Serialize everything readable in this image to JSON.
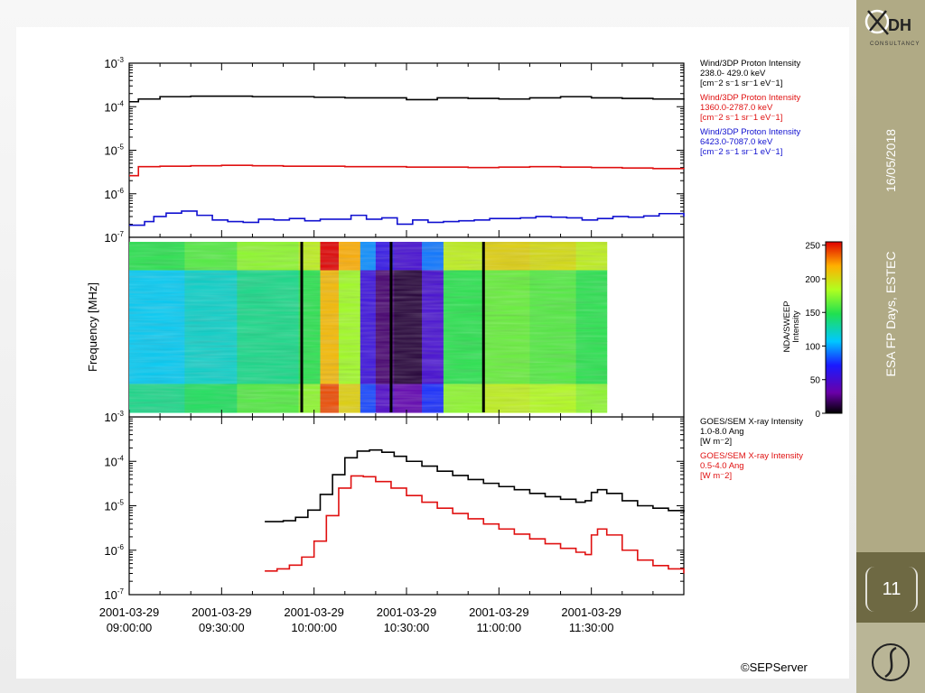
{
  "sidebar": {
    "date": "16/05/2018",
    "event": "ESA FP Days, ESTEC",
    "page_number": "11",
    "logo_text": "DH",
    "logo_subtext": "CONSULTANCY"
  },
  "credit": "©SEPServer",
  "chart_data": [
    {
      "type": "line",
      "panel": "top",
      "yscale": "log",
      "ylim": [
        1e-07,
        0.001
      ],
      "ytick_labels": [
        "10-3",
        "10-4",
        "10-5",
        "10-6",
        "10-7"
      ],
      "x_unit": "minutes after 2001-03-29 09:00:00",
      "xlim": [
        0,
        180
      ],
      "series": [
        {
          "name": "Wind/3DP Proton Intensity",
          "energy": " 238.0- 429.0 keV",
          "units": "[cm-2 s-1 sr-1 eV-1]",
          "color": "#000000",
          "x": [
            0,
            3,
            10,
            20,
            30,
            40,
            50,
            60,
            70,
            80,
            90,
            100,
            110,
            120,
            130,
            140,
            150,
            160,
            170,
            180
          ],
          "y": [
            0.00013,
            0.00015,
            0.00017,
            0.000175,
            0.000175,
            0.00017,
            0.00017,
            0.000165,
            0.00016,
            0.00016,
            0.000145,
            0.00016,
            0.000155,
            0.00015,
            0.00016,
            0.00017,
            0.00016,
            0.000155,
            0.00015,
            0.000145
          ]
        },
        {
          "name": "Wind/3DP Proton Intensity",
          "energy": "1360.0-2787.0 keV",
          "units": "[cm-2 s-1 sr-1 eV-1]",
          "color": "#e01010",
          "x": [
            0,
            2,
            3,
            10,
            20,
            30,
            40,
            50,
            60,
            70,
            80,
            90,
            100,
            110,
            120,
            130,
            140,
            150,
            160,
            170,
            180
          ],
          "y": [
            2.6e-06,
            2.6e-06,
            4.2e-06,
            4.3e-06,
            4.4e-06,
            4.5e-06,
            4.4e-06,
            4.3e-06,
            4.3e-06,
            4.2e-06,
            4.2e-06,
            4.1e-06,
            4.1e-06,
            4e-06,
            4.1e-06,
            4.2e-06,
            4.1e-06,
            4e-06,
            3.9e-06,
            3.8e-06,
            3.7e-06
          ]
        },
        {
          "name": "Wind/3DP Proton Intensity",
          "energy": "6423.0-7087.0 keV",
          "units": "[cm-2 s-1 sr-1 eV-1]",
          "color": "#1010d0",
          "x": [
            0,
            5,
            8,
            12,
            17,
            22,
            27,
            32,
            37,
            42,
            47,
            52,
            57,
            62,
            67,
            72,
            77,
            82,
            87,
            92,
            97,
            102,
            107,
            112,
            117,
            122,
            127,
            132,
            137,
            142,
            147,
            152,
            157,
            162,
            167,
            172,
            180
          ],
          "y": [
            1.9e-07,
            2.3e-07,
            3e-07,
            3.6e-07,
            4e-07,
            3.2e-07,
            2.5e-07,
            2.3e-07,
            2.2e-07,
            2.6e-07,
            2.5e-07,
            2.7e-07,
            2.4e-07,
            2.6e-07,
            2.6e-07,
            3.2e-07,
            2.6e-07,
            2.8e-07,
            2e-07,
            2.5e-07,
            2.2e-07,
            2.3e-07,
            2.4e-07,
            2.5e-07,
            2.7e-07,
            2.7e-07,
            2.8e-07,
            3e-07,
            2.9e-07,
            2.8e-07,
            2.5e-07,
            2.7e-07,
            3e-07,
            2.9e-07,
            3.1e-07,
            3.5e-07,
            3e-07
          ]
        }
      ]
    },
    {
      "type": "heatmap",
      "panel": "middle",
      "ylabel": "Frequency [MHz]",
      "colorbar_label": "NDA/SWEEP Intensity",
      "colorbar_ticks": [
        0,
        50,
        100,
        150,
        200,
        250
      ],
      "colorbar_range": [
        0,
        255
      ],
      "x_unit": "minutes after 2001-03-29 09:00:00",
      "data_xlim": [
        0,
        155
      ],
      "columns": [
        {
          "x0": 0,
          "x1": 18,
          "v": 110
        },
        {
          "x0": 18,
          "x1": 35,
          "v": 120
        },
        {
          "x0": 35,
          "x1": 55,
          "v": 135
        },
        {
          "x0": 55,
          "x1": 62,
          "v": 150
        },
        {
          "x0": 62,
          "x1": 68,
          "v": 215
        },
        {
          "x0": 68,
          "x1": 75,
          "v": 180
        },
        {
          "x0": 75,
          "x1": 80,
          "v": 55
        },
        {
          "x0": 80,
          "x1": 86,
          "v": 20
        },
        {
          "x0": 86,
          "x1": 95,
          "v": 10
        },
        {
          "x0": 95,
          "x1": 102,
          "v": 50
        },
        {
          "x0": 102,
          "x1": 115,
          "v": 150
        },
        {
          "x0": 115,
          "x1": 130,
          "v": 165
        },
        {
          "x0": 130,
          "x1": 145,
          "v": 160
        },
        {
          "x0": 145,
          "x1": 155,
          "v": 150
        }
      ],
      "dark_lines_x": [
        56,
        85,
        115
      ]
    },
    {
      "type": "line",
      "panel": "bottom",
      "yscale": "log",
      "ylim": [
        1e-07,
        0.001
      ],
      "ytick_labels": [
        "10-3",
        "10-4",
        "10-5",
        "10-6",
        "10-7"
      ],
      "x_unit": "minutes after 2001-03-29 09:00:00",
      "xlim": [
        0,
        180
      ],
      "xtick_labels": [
        [
          "2001-03-29",
          "09:00:00"
        ],
        [
          "2001-03-29",
          "09:30:00"
        ],
        [
          "2001-03-29",
          "10:00:00"
        ],
        [
          "2001-03-29",
          "10:30:00"
        ],
        [
          "2001-03-29",
          "11:00:00"
        ],
        [
          "2001-03-29",
          "11:30:00"
        ]
      ],
      "xtick_values": [
        0,
        30,
        60,
        90,
        120,
        150
      ],
      "series": [
        {
          "name": "GOES/SEM X-ray Intensity",
          "energy": "1.0-8.0 Ang",
          "units": "[W m-2]",
          "color": "#000000",
          "x": [
            44,
            50,
            54,
            58,
            62,
            66,
            70,
            74,
            78,
            82,
            86,
            90,
            95,
            100,
            105,
            110,
            115,
            120,
            125,
            130,
            135,
            140,
            145,
            148,
            150,
            152,
            155,
            160,
            165,
            170,
            175,
            180
          ],
          "y": [
            4.4e-06,
            4.6e-06,
            5.5e-06,
            8e-06,
            1.8e-05,
            5e-05,
            0.00012,
            0.00017,
            0.00018,
            0.00016,
            0.00013,
            0.0001,
            7.8e-05,
            6e-05,
            4.8e-05,
            3.9e-05,
            3.2e-05,
            2.7e-05,
            2.3e-05,
            1.9e-05,
            1.6e-05,
            1.4e-05,
            1.2e-05,
            1.3e-05,
            2e-05,
            2.3e-05,
            1.9e-05,
            1.3e-05,
            1e-05,
            8.8e-06,
            7.8e-06,
            7.2e-06
          ]
        },
        {
          "name": "GOES/SEM X-ray Intensity",
          "energy": "0.5-4.0 Ang",
          "units": "[W m-2]",
          "color": "#e01010",
          "x": [
            44,
            48,
            52,
            56,
            60,
            64,
            68,
            72,
            76,
            80,
            85,
            90,
            95,
            100,
            105,
            110,
            115,
            120,
            125,
            130,
            135,
            140,
            145,
            148,
            150,
            152,
            155,
            160,
            165,
            170,
            175,
            180
          ],
          "y": [
            3.4e-07,
            3.8e-07,
            4.6e-07,
            7e-07,
            1.6e-06,
            6e-06,
            2.5e-05,
            4.7e-05,
            4.5e-05,
            3.5e-05,
            2.5e-05,
            1.7e-05,
            1.2e-05,
            8.8e-06,
            6.7e-06,
            5.1e-06,
            3.9e-06,
            3e-06,
            2.3e-06,
            1.8e-06,
            1.4e-06,
            1.1e-06,
            9e-07,
            8e-07,
            2.2e-06,
            3e-06,
            2.2e-06,
            1e-06,
            6e-07,
            4.5e-07,
            3.8e-07,
            3e-07
          ]
        }
      ]
    }
  ]
}
